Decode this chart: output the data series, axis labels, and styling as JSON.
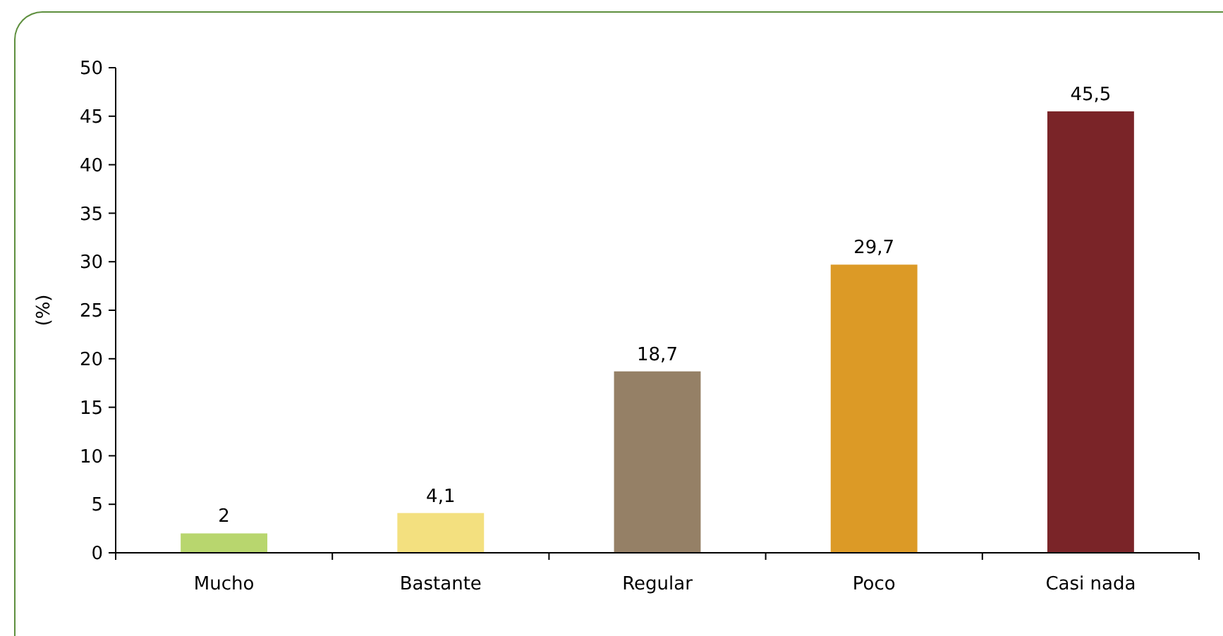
{
  "chart_data": {
    "type": "bar",
    "ylabel": "(%)",
    "categories": [
      "Mucho",
      "Bastante",
      "Regular",
      "Poco",
      "Casi nada"
    ],
    "values": [
      2,
      4.1,
      18.7,
      29.7,
      45.5
    ],
    "colors": [
      "#b8d66e",
      "#f3e07f",
      "#958066",
      "#dc9a26",
      "#7a2428"
    ],
    "value_labels": [
      "2",
      "4,1",
      "18,7",
      "29,7",
      "45,5"
    ],
    "ylim": [
      0,
      50
    ],
    "yticks": [
      0,
      5,
      10,
      15,
      20,
      25,
      30,
      35,
      40,
      45,
      50
    ],
    "grid": false
  }
}
